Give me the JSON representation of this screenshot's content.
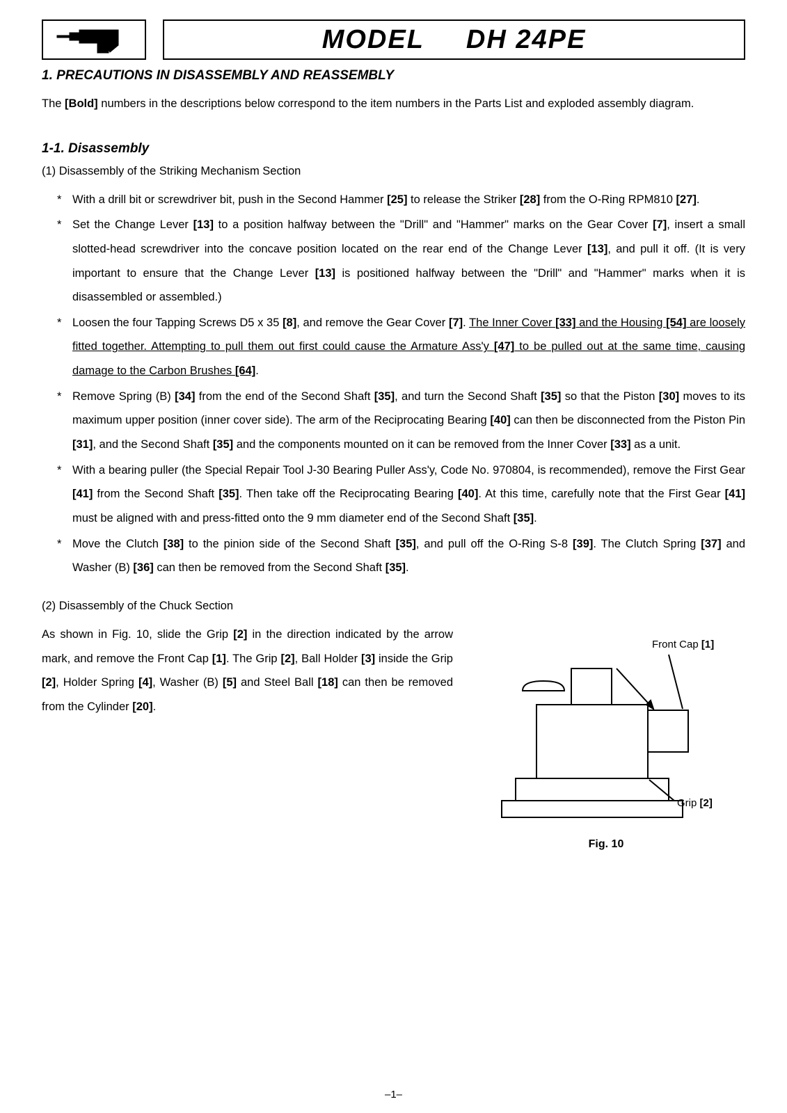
{
  "header": {
    "model_prefix": "MODEL",
    "model_name": "DH 24PE"
  },
  "section1": {
    "heading": "1. PRECAUTIONS IN DISASSEMBLY AND REASSEMBLY",
    "intro_pre": "The ",
    "intro_bold": "[Bold]",
    "intro_post": " numbers in the descriptions below correspond to the item numbers in the Parts List and exploded assembly diagram."
  },
  "section1_1": {
    "heading": "1-1. Disassembly",
    "sub1": {
      "title": "(1) Disassembly of the Striking Mechanism Section",
      "items": [
        {
          "html": "With a drill bit or screwdriver bit, push in the Second Hammer <strong>[25]</strong> to release the Striker <strong>[28]</strong> from the O-Ring RPM810 <strong>[27]</strong>."
        },
        {
          "html": "Set the Change Lever <strong>[13]</strong> to a position halfway between the \"Drill\" and \"Hammer\" marks on the Gear Cover <strong>[7]</strong>, insert a small slotted-head screwdriver into the concave position located on the rear end of the Change Lever <strong>[13]</strong>, and pull it off. (It is very important to ensure that the Change Lever <strong>[13]</strong> is positioned halfway between the \"Drill\" and \"Hammer\" marks when it is disassembled or assembled.)"
        },
        {
          "html": "Loosen the four Tapping Screws D5 x 35 <strong>[8]</strong>, and remove the Gear Cover <strong>[7]</strong>. <span class=\"u\">The Inner Cover <strong>[33]</strong> and the Housing <strong>[54]</strong> are loosely fitted together. Attempting to pull them out first could cause the Armature Ass'y <strong>[47]</strong> to be pulled out at the same time, causing damage to the Carbon Brushes <strong>[64]</strong></span>."
        },
        {
          "html": "Remove Spring (B) <strong>[34]</strong> from the end of the Second Shaft <strong>[35]</strong>, and turn the Second Shaft <strong>[35]</strong> so that the Piston <strong>[30]</strong> moves to its maximum upper position (inner cover side). The arm of the Reciprocating Bearing <strong>[40]</strong> can then be disconnected from the Piston Pin <strong>[31]</strong>, and the Second Shaft <strong>[35]</strong> and the components mounted on it can be removed from the Inner Cover <strong>[33]</strong> as a unit."
        },
        {
          "html": "With a bearing puller (the Special Repair Tool J-30 Bearing Puller Ass'y, Code No. 970804, is recommended), remove the First Gear <strong>[41]</strong> from the Second Shaft <strong>[35]</strong>. Then take off the Reciprocating Bearing <strong>[40]</strong>. At this time, carefully note that the First Gear <strong>[41]</strong> must be aligned with and press-fitted onto the 9 mm diameter end of the Second Shaft <strong>[35]</strong>."
        },
        {
          "html": "Move the Clutch <strong>[38]</strong> to the pinion side of the Second Shaft <strong>[35]</strong>, and pull off the O-Ring S-8 <strong>[39]</strong>. The Clutch Spring <strong>[37]</strong> and Washer (B) <strong>[36]</strong> can then be removed from the Second Shaft <strong>[35]</strong>."
        }
      ]
    },
    "sub2": {
      "title": "(2) Disassembly of the Chuck Section",
      "text_html": "As shown in Fig. 10, slide the Grip <strong>[2]</strong> in the direction indicated by the arrow mark, and remove the Front Cap <strong>[1]</strong>. The Grip <strong>[2]</strong>, Ball Holder <strong>[3]</strong> inside the Grip <strong>[2]</strong>, Holder Spring <strong>[4]</strong>, Washer (B) <strong>[5]</strong> and Steel Ball <strong>[18]</strong> can then be removed from the Cylinder <strong>[20]</strong>."
    }
  },
  "figure": {
    "label_front_cap": "Front Cap [1]",
    "label_grip": "Grip [2]",
    "caption": "Fig. 10",
    "stroke": "#000000",
    "fill": "#ffffff"
  },
  "page_number": "–1–"
}
